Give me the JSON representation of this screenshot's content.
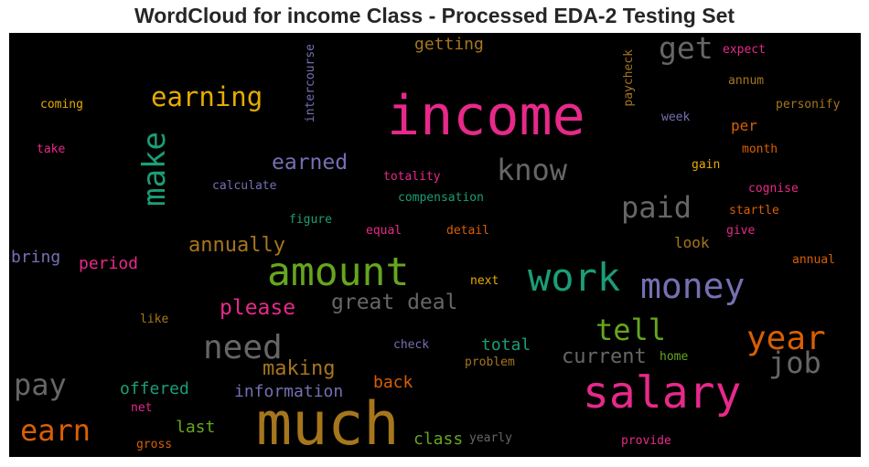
{
  "chart_data": {
    "type": "wordcloud",
    "title": "WordCloud for income Class - Processed EDA-2 Testing Set",
    "background": "#000000",
    "colormap": "Dark2",
    "words": [
      {
        "text": "income",
        "color": "#e7298a"
      },
      {
        "text": "much",
        "color": "#a6761d"
      },
      {
        "text": "salary",
        "color": "#e7298a"
      },
      {
        "text": "amount",
        "color": "#66a61e"
      },
      {
        "text": "work",
        "color": "#1b9e77"
      },
      {
        "text": "money",
        "color": "#7570b3"
      },
      {
        "text": "make",
        "color": "#1b9e77"
      },
      {
        "text": "need",
        "color": "#666666"
      },
      {
        "text": "earning",
        "color": "#e6ab02"
      },
      {
        "text": "get",
        "color": "#666666"
      },
      {
        "text": "know",
        "color": "#666666"
      },
      {
        "text": "paid",
        "color": "#666666"
      },
      {
        "text": "tell",
        "color": "#66a61e"
      },
      {
        "text": "year",
        "color": "#d95f02"
      },
      {
        "text": "job",
        "color": "#666666"
      },
      {
        "text": "pay",
        "color": "#666666"
      },
      {
        "text": "earn",
        "color": "#d95f02"
      },
      {
        "text": "please",
        "color": "#e7298a"
      },
      {
        "text": "great deal",
        "color": "#666666"
      },
      {
        "text": "earned",
        "color": "#7570b3"
      },
      {
        "text": "annually",
        "color": "#a6761d"
      },
      {
        "text": "current",
        "color": "#666666"
      },
      {
        "text": "making",
        "color": "#a6761d"
      },
      {
        "text": "information",
        "color": "#7570b3"
      },
      {
        "text": "offered",
        "color": "#1b9e77"
      },
      {
        "text": "getting",
        "color": "#a6761d"
      },
      {
        "text": "back",
        "color": "#d95f02"
      },
      {
        "text": "last",
        "color": "#66a61e"
      },
      {
        "text": "class",
        "color": "#66a61e"
      },
      {
        "text": "total",
        "color": "#1b9e77"
      },
      {
        "text": "period",
        "color": "#e7298a"
      },
      {
        "text": "look",
        "color": "#a6761d"
      },
      {
        "text": "bring",
        "color": "#7570b3"
      },
      {
        "text": "per",
        "color": "#d95f02"
      },
      {
        "text": "intercourse",
        "color": "#7570b3"
      },
      {
        "text": "paycheck",
        "color": "#a6761d"
      },
      {
        "text": "expect",
        "color": "#e7298a"
      },
      {
        "text": "annum",
        "color": "#a6761d"
      },
      {
        "text": "personify",
        "color": "#a6761d"
      },
      {
        "text": "coming",
        "color": "#e6ab02"
      },
      {
        "text": "week",
        "color": "#7570b3"
      },
      {
        "text": "take",
        "color": "#e7298a"
      },
      {
        "text": "month",
        "color": "#d95f02"
      },
      {
        "text": "totality",
        "color": "#e7298a"
      },
      {
        "text": "gain",
        "color": "#e6ab02"
      },
      {
        "text": "calculate",
        "color": "#7570b3"
      },
      {
        "text": "cognise",
        "color": "#e7298a"
      },
      {
        "text": "compensation",
        "color": "#1b9e77"
      },
      {
        "text": "startle",
        "color": "#d95f02"
      },
      {
        "text": "figure",
        "color": "#1b9e77"
      },
      {
        "text": "equal",
        "color": "#e7298a"
      },
      {
        "text": "detail",
        "color": "#d95f02"
      },
      {
        "text": "give",
        "color": "#e7298a"
      },
      {
        "text": "annual",
        "color": "#d95f02"
      },
      {
        "text": "next",
        "color": "#e6ab02"
      },
      {
        "text": "like",
        "color": "#a6761d"
      },
      {
        "text": "check",
        "color": "#7570b3"
      },
      {
        "text": "home",
        "color": "#66a61e"
      },
      {
        "text": "problem",
        "color": "#a6761d"
      },
      {
        "text": "net",
        "color": "#e7298a"
      },
      {
        "text": "gross",
        "color": "#d95f02"
      },
      {
        "text": "yearly",
        "color": "#666666"
      },
      {
        "text": "provide",
        "color": "#e7298a"
      }
    ]
  }
}
